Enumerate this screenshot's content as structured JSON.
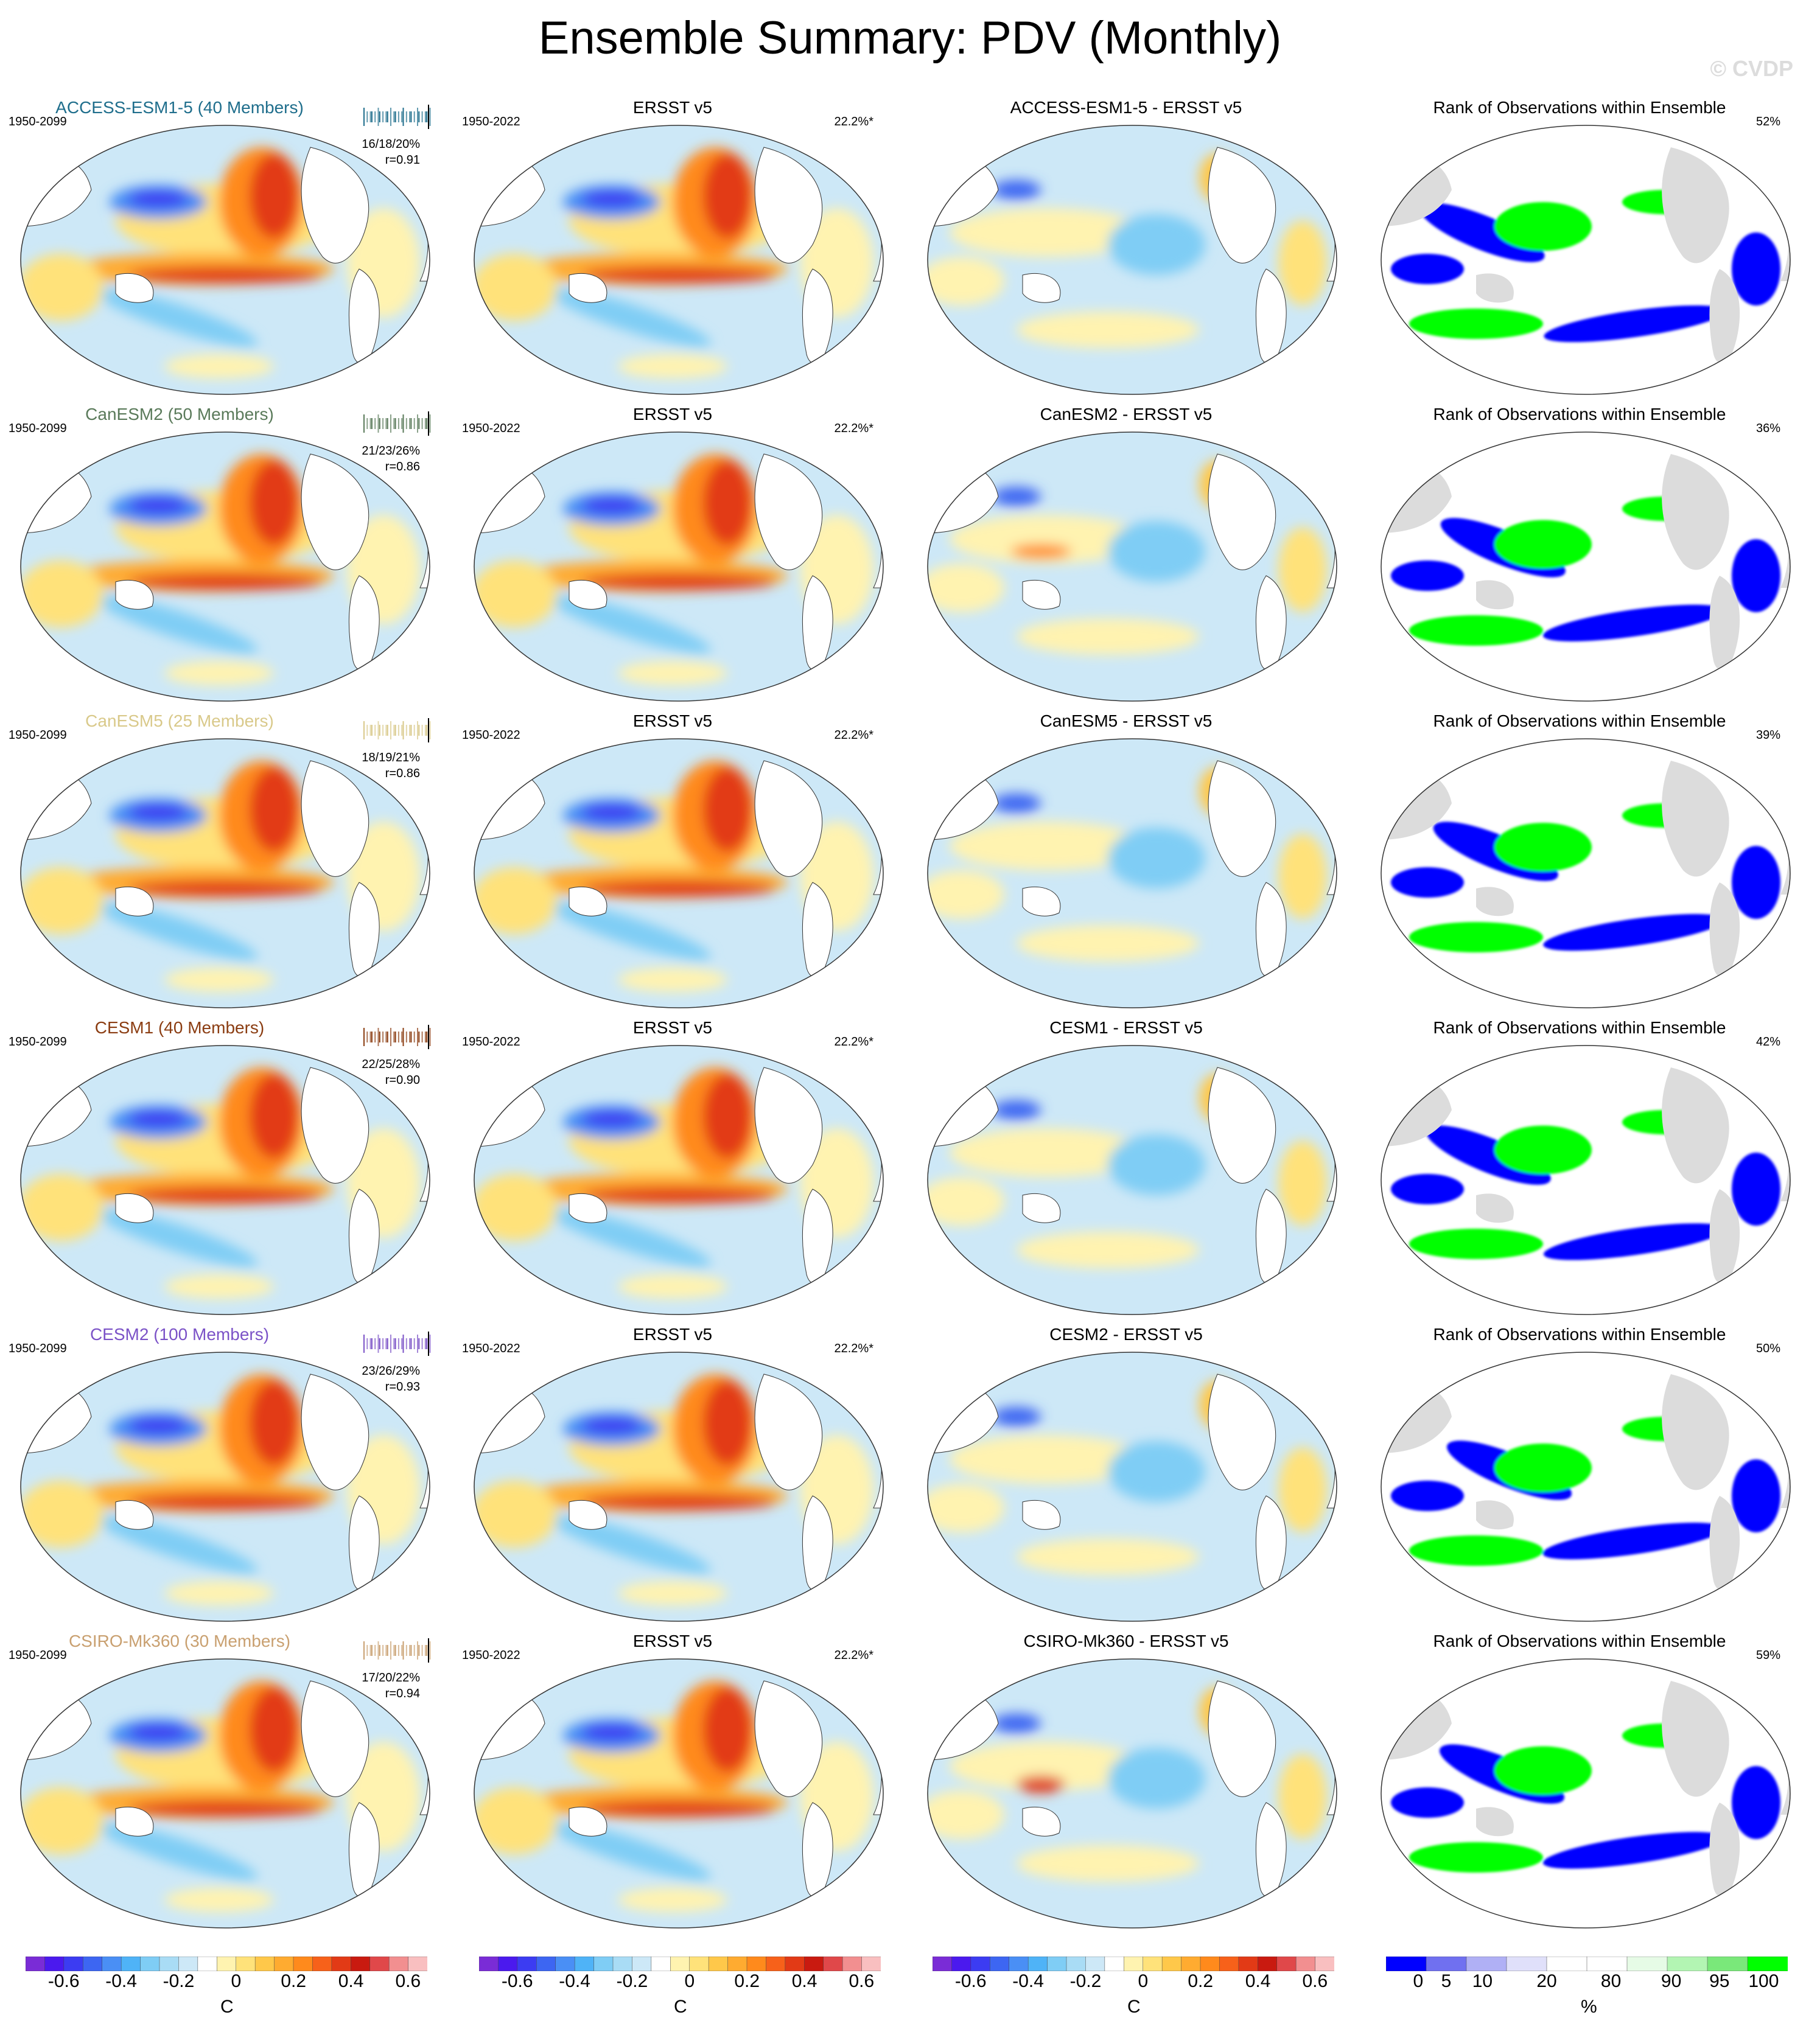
{
  "title": "Ensemble Summary: PDV (Monthly)",
  "copyright": "© CVDP",
  "obs_label": "ERSST v5",
  "obs_years": "1950-2022",
  "obs_pct": "22.2%*",
  "rank_title": "Rank of Observations within Ensemble",
  "rows": [
    {
      "model": "ACCESS-ESM1-5 (40 Members)",
      "color": "#1f6e8c",
      "years": "1950-2099",
      "pcts": "16/18/20%",
      "r": "r=0.91",
      "diff": "ACCESS-ESM1-5 - ERSST v5",
      "rank_pct": "52%"
    },
    {
      "model": "CanESM2 (50 Members)",
      "color": "#5a7a5a",
      "years": "1950-2099",
      "pcts": "21/23/26%",
      "r": "r=0.86",
      "diff": "CanESM2 - ERSST v5",
      "rank_pct": "36%"
    },
    {
      "model": "CanESM5 (25 Members)",
      "color": "#d9c98a",
      "years": "1950-2099",
      "pcts": "18/19/21%",
      "r": "r=0.86",
      "diff": "CanESM5 - ERSST v5",
      "rank_pct": "39%"
    },
    {
      "model": "CESM1 (40 Members)",
      "color": "#8b3d12",
      "years": "1950-2099",
      "pcts": "22/25/28%",
      "r": "r=0.90",
      "diff": "CESM1 - ERSST v5",
      "rank_pct": "42%"
    },
    {
      "model": "CESM2 (100 Members)",
      "color": "#7b52c7",
      "years": "1950-2099",
      "pcts": "23/26/29%",
      "r": "r=0.93",
      "diff": "CESM2 - ERSST v5",
      "rank_pct": "50%"
    },
    {
      "model": "CSIRO-Mk360 (30 Members)",
      "color": "#c9a070",
      "years": "1950-2099",
      "pcts": "17/20/22%",
      "r": "r=0.94",
      "diff": "CSIRO-Mk360 - ERSST v5",
      "rank_pct": "59%"
    }
  ],
  "temp_colorbar": {
    "unit": "C",
    "labels": [
      "-0.6",
      "-0.4",
      "-0.2",
      "0",
      "0.2",
      "0.4",
      "0.6"
    ],
    "colors": [
      "#7a2cd6",
      "#4b19ee",
      "#3c3cf2",
      "#3d66f2",
      "#4a8ff5",
      "#4fb3f7",
      "#7fcdf5",
      "#a9dcf5",
      "#cde8f7",
      "#ffffff",
      "#fff3b0",
      "#ffe27a",
      "#ffc84a",
      "#ffab30",
      "#ff8a1c",
      "#f7611a",
      "#e23a16",
      "#c91a10",
      "#e0484a",
      "#f28f90",
      "#f9bfc0"
    ]
  },
  "rank_colorbar": {
    "unit": "%",
    "labels": [
      "0",
      "5",
      "10",
      "20",
      "80",
      "90",
      "95",
      "100"
    ],
    "colors": [
      "#0000ff",
      "#7070f0",
      "#b0b0f5",
      "#e0e0fa",
      "#ffffff",
      "#ffffff",
      "#e6fbe6",
      "#b3f5b3",
      "#7ae87a",
      "#00ff00"
    ]
  }
}
